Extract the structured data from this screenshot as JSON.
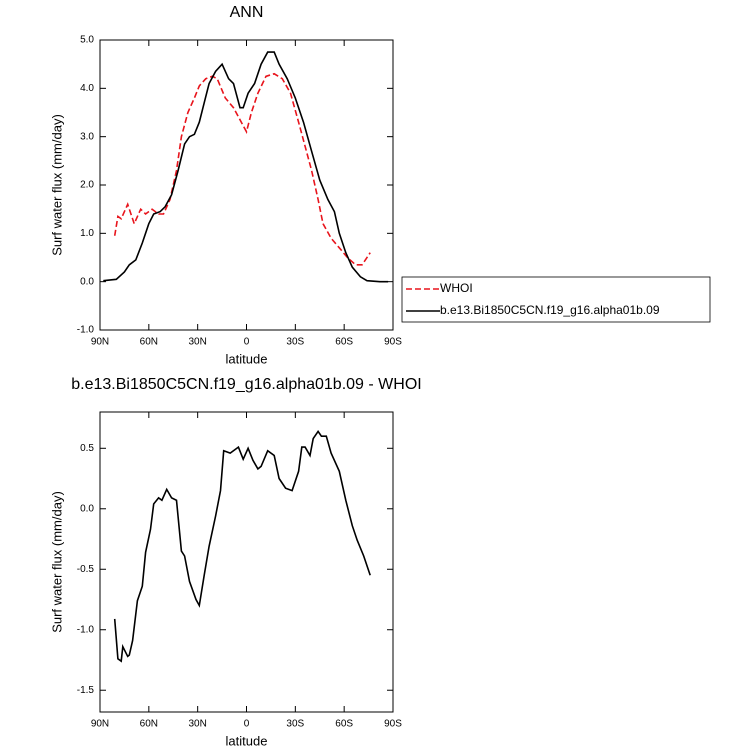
{
  "chart_data": [
    {
      "type": "line",
      "title": "ANN",
      "ylabel": "Surf water flux (mm/day)",
      "xlabel": "latitude",
      "xlim": [
        90,
        -90
      ],
      "xticks": [
        {
          "value": 90,
          "label": "90N"
        },
        {
          "value": 60,
          "label": "60N"
        },
        {
          "value": 30,
          "label": "30N"
        },
        0,
        {
          "value": -30,
          "label": "30S"
        },
        {
          "value": -60,
          "label": "60S"
        },
        {
          "value": -90,
          "label": "90S"
        }
      ],
      "ylim": [
        -1,
        5
      ],
      "yticks": [
        {
          "value": -1,
          "label": "-1.0"
        },
        {
          "value": 0,
          "label": "0.0"
        },
        {
          "value": 1,
          "label": "1.0"
        },
        {
          "value": 2,
          "label": "2.0"
        },
        {
          "value": 3,
          "label": "3.0"
        },
        {
          "value": 4,
          "label": "4.0"
        },
        {
          "value": 5,
          "label": "5.0"
        }
      ],
      "legend": "right",
      "series": [
        {
          "name": "WHOI",
          "color": "#e8141c",
          "line_style": "dashed",
          "x": [
            81,
            79,
            77,
            73,
            69,
            65,
            62,
            58,
            54,
            51,
            47,
            43,
            40,
            36,
            32,
            29,
            25,
            21,
            18,
            13,
            8,
            4,
            0,
            -3,
            -7,
            -12,
            -17,
            -22,
            -27,
            -32,
            -36,
            -40,
            -44,
            -47,
            -52,
            -57,
            -62,
            -67,
            -71,
            -76
          ],
          "values": [
            0.95,
            1.35,
            1.3,
            1.6,
            1.2,
            1.5,
            1.4,
            1.5,
            1.4,
            1.4,
            1.7,
            2.3,
            3.0,
            3.5,
            3.8,
            4.05,
            4.2,
            4.25,
            4.2,
            3.8,
            3.6,
            3.35,
            3.1,
            3.5,
            3.9,
            4.25,
            4.3,
            4.2,
            3.9,
            3.3,
            2.8,
            2.3,
            1.7,
            1.2,
            0.9,
            0.7,
            0.5,
            0.35,
            0.35,
            0.6
          ]
        },
        {
          "name": "b.e13.Bi1850C5CN.f19_g16.alpha01b.09",
          "color": "#000000",
          "line_style": "solid",
          "x": [
            88,
            80,
            75,
            72,
            68,
            64,
            60,
            57,
            53,
            50,
            46,
            42,
            38,
            35,
            32,
            29,
            26,
            23,
            19,
            15,
            11,
            8,
            4,
            2,
            -1,
            -5,
            -9,
            -13,
            -17,
            -20,
            -25,
            -30,
            -35,
            -40,
            -45,
            -50,
            -54,
            -57,
            -61,
            -65,
            -70,
            -74,
            -82,
            -87
          ],
          "values": [
            0.02,
            0.05,
            0.2,
            0.35,
            0.45,
            0.8,
            1.2,
            1.4,
            1.45,
            1.55,
            1.8,
            2.3,
            2.85,
            3.0,
            3.05,
            3.3,
            3.7,
            4.1,
            4.35,
            4.5,
            4.2,
            4.1,
            3.6,
            3.6,
            3.9,
            4.1,
            4.5,
            4.75,
            4.75,
            4.5,
            4.2,
            3.8,
            3.3,
            2.7,
            2.1,
            1.7,
            1.45,
            1.0,
            0.6,
            0.3,
            0.1,
            0.02,
            0.0,
            0.0
          ]
        }
      ]
    },
    {
      "type": "line",
      "title": "b.e13.Bi1850C5CN.f19_g16.alpha01b.09 - WHOI",
      "ylabel": "Surf water flux (mm/day)",
      "xlabel": "latitude",
      "xlim": [
        90,
        -90
      ],
      "xticks": [
        {
          "value": 90,
          "label": "90N"
        },
        {
          "value": 60,
          "label": "60N"
        },
        {
          "value": 30,
          "label": "30N"
        },
        0,
        {
          "value": -30,
          "label": "30S"
        },
        {
          "value": -60,
          "label": "60S"
        },
        {
          "value": -90,
          "label": "90S"
        }
      ],
      "ylim": [
        -1.68,
        0.8
      ],
      "yticks": [
        {
          "value": -1.5,
          "label": "-1.5"
        },
        {
          "value": -1,
          "label": "-1.0"
        },
        {
          "value": -0.5,
          "label": "-0.5"
        },
        {
          "value": 0,
          "label": "0.0"
        },
        {
          "value": 0.5,
          "label": "0.5"
        }
      ],
      "color": "#000000",
      "x": [
        81,
        79,
        77,
        76,
        73,
        72,
        70,
        67,
        64,
        62,
        59,
        57,
        54,
        52,
        49,
        46,
        43,
        40,
        38,
        35,
        31,
        29,
        26,
        23,
        19,
        16,
        14,
        10,
        5,
        2,
        -1,
        -4,
        -7,
        -9,
        -13,
        -17,
        -20,
        -24,
        -28,
        -32,
        -34,
        -36,
        -39,
        -41,
        -44,
        -46,
        -49,
        -52,
        -57,
        -61,
        -65,
        -68,
        -72,
        -76
      ],
      "values": [
        -0.91,
        -1.24,
        -1.26,
        -1.14,
        -1.22,
        -1.21,
        -1.09,
        -0.76,
        -0.64,
        -0.36,
        -0.17,
        0.04,
        0.09,
        0.07,
        0.16,
        0.09,
        0.07,
        -0.35,
        -0.39,
        -0.6,
        -0.75,
        -0.8,
        -0.55,
        -0.31,
        -0.06,
        0.15,
        0.48,
        0.46,
        0.51,
        0.41,
        0.5,
        0.4,
        0.33,
        0.35,
        0.48,
        0.44,
        0.25,
        0.17,
        0.15,
        0.31,
        0.51,
        0.51,
        0.44,
        0.58,
        0.64,
        0.6,
        0.6,
        0.46,
        0.31,
        0.07,
        -0.14,
        -0.26,
        -0.39,
        -0.55
      ]
    }
  ]
}
